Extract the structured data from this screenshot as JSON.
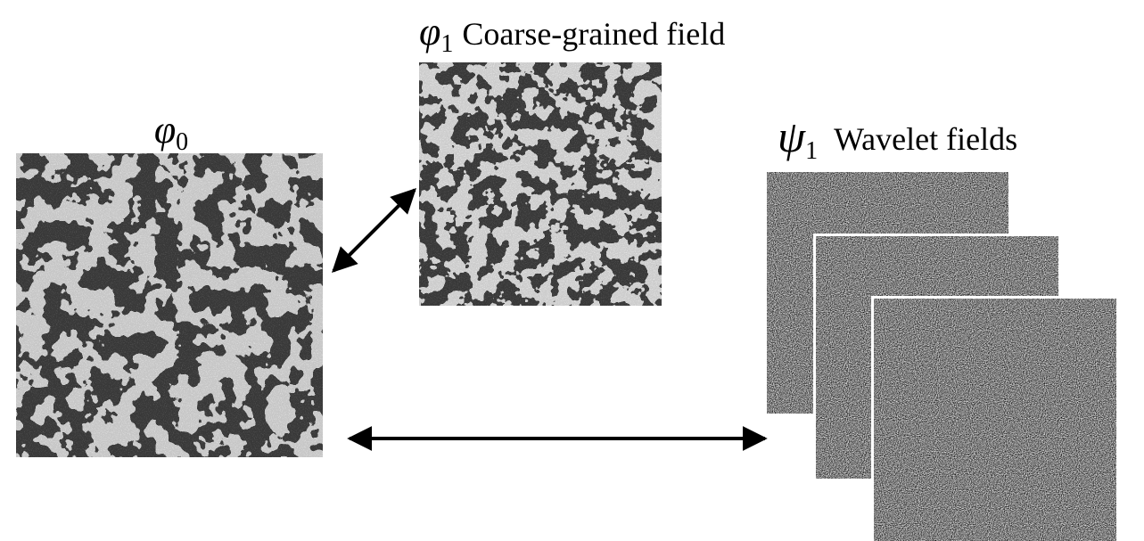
{
  "nodes": [
    {
      "symbol": "φ",
      "subscript": "0"
    },
    {
      "symbol": "φ",
      "subscript": "1",
      "label": "Coarse-grained field"
    },
    {
      "symbol": "ψ",
      "subscript": "1",
      "label": "Wavelet fields"
    }
  ]
}
